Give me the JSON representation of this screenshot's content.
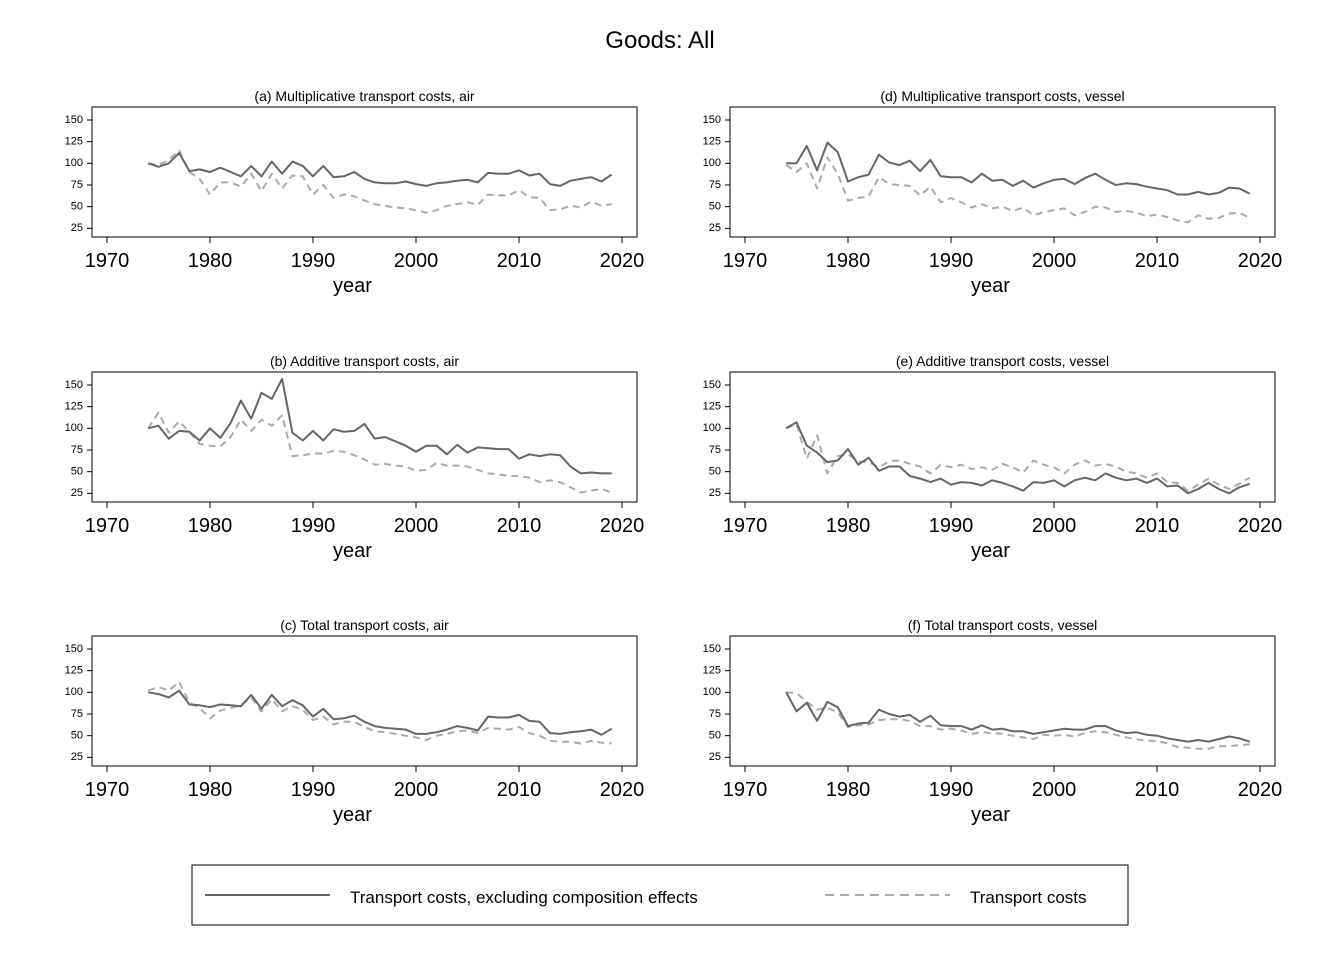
{
  "title": "Goods: All",
  "legend": {
    "items": [
      {
        "label": "Transport costs, excluding composition effects",
        "color": "#666666",
        "dash": "solid"
      },
      {
        "label": "Transport costs",
        "color": "#aaaaaa",
        "dash": "dashed"
      }
    ]
  },
  "chart_data": [
    {
      "id": "a",
      "type": "line",
      "title": "(a) Multiplicative transport costs, air",
      "xlabel": "year",
      "ylabel": "",
      "xlim": [
        1970,
        2020
      ],
      "ylim": [
        15,
        165
      ],
      "xticks": [
        1970,
        1980,
        1990,
        2000,
        2010,
        2020
      ],
      "yticks": [
        25,
        50,
        75,
        100,
        125,
        150
      ],
      "x": [
        1974,
        1975,
        1976,
        1977,
        1978,
        1979,
        1980,
        1981,
        1982,
        1983,
        1984,
        1985,
        1986,
        1987,
        1988,
        1989,
        1990,
        1991,
        1992,
        1993,
        1994,
        1995,
        1996,
        1997,
        1998,
        1999,
        2000,
        2001,
        2002,
        2003,
        2004,
        2005,
        2006,
        2007,
        2008,
        2009,
        2010,
        2011,
        2012,
        2013,
        2014,
        2015,
        2016,
        2017,
        2018,
        2019
      ],
      "series": [
        {
          "values": [
            100,
            96,
            100,
            112,
            91,
            93,
            90,
            95,
            90,
            85,
            97,
            85,
            102,
            88,
            102,
            97,
            85,
            97,
            84,
            85,
            90,
            82,
            78,
            77,
            77,
            79,
            76,
            74,
            77,
            78,
            80,
            81,
            78,
            89,
            88,
            88,
            92,
            86,
            88,
            76,
            74,
            80,
            82,
            84,
            79,
            87
          ]
        },
        {
          "values": [
            100,
            98,
            104,
            115,
            90,
            82,
            64,
            78,
            78,
            73,
            88,
            68,
            88,
            71,
            86,
            85,
            64,
            75,
            60,
            64,
            62,
            57,
            53,
            51,
            49,
            48,
            46,
            43,
            46,
            51,
            53,
            55,
            52,
            64,
            63,
            63,
            69,
            61,
            60,
            46,
            47,
            51,
            49,
            56,
            51,
            53
          ]
        }
      ]
    },
    {
      "id": "d",
      "type": "line",
      "title": "(d) Multiplicative transport costs, vessel",
      "xlabel": "year",
      "ylabel": "",
      "xlim": [
        1970,
        2020
      ],
      "ylim": [
        15,
        165
      ],
      "xticks": [
        1970,
        1980,
        1990,
        2000,
        2010,
        2020
      ],
      "yticks": [
        25,
        50,
        75,
        100,
        125,
        150
      ],
      "x": [
        1974,
        1975,
        1976,
        1977,
        1978,
        1979,
        1980,
        1981,
        1982,
        1983,
        1984,
        1985,
        1986,
        1987,
        1988,
        1989,
        1990,
        1991,
        1992,
        1993,
        1994,
        1995,
        1996,
        1997,
        1998,
        1999,
        2000,
        2001,
        2002,
        2003,
        2004,
        2005,
        2006,
        2007,
        2008,
        2009,
        2010,
        2011,
        2012,
        2013,
        2014,
        2015,
        2016,
        2017,
        2018,
        2019
      ],
      "series": [
        {
          "values": [
            100,
            100,
            120,
            92,
            124,
            113,
            79,
            84,
            87,
            110,
            101,
            98,
            103,
            91,
            104,
            85,
            84,
            84,
            78,
            88,
            80,
            81,
            74,
            80,
            72,
            77,
            81,
            82,
            76,
            83,
            88,
            81,
            75,
            77,
            76,
            73,
            71,
            69,
            64,
            64,
            67,
            64,
            66,
            72,
            71,
            65
          ]
        },
        {
          "values": [
            98,
            90,
            100,
            71,
            107,
            88,
            57,
            60,
            62,
            84,
            76,
            75,
            74,
            63,
            73,
            55,
            60,
            55,
            49,
            53,
            48,
            50,
            45,
            49,
            40,
            44,
            46,
            48,
            40,
            44,
            50,
            49,
            44,
            45,
            43,
            39,
            41,
            38,
            34,
            32,
            40,
            36,
            37,
            42,
            43,
            37
          ]
        }
      ]
    },
    {
      "id": "b",
      "type": "line",
      "title": "(b) Additive transport costs, air",
      "xlabel": "year",
      "ylabel": "",
      "xlim": [
        1970,
        2020
      ],
      "ylim": [
        15,
        165
      ],
      "xticks": [
        1970,
        1980,
        1990,
        2000,
        2010,
        2020
      ],
      "yticks": [
        25,
        50,
        75,
        100,
        125,
        150
      ],
      "x": [
        1974,
        1975,
        1976,
        1977,
        1978,
        1979,
        1980,
        1981,
        1982,
        1983,
        1984,
        1985,
        1986,
        1987,
        1988,
        1989,
        1990,
        1991,
        1992,
        1993,
        1994,
        1995,
        1996,
        1997,
        1998,
        1999,
        2000,
        2001,
        2002,
        2003,
        2004,
        2005,
        2006,
        2007,
        2008,
        2009,
        2010,
        2011,
        2012,
        2013,
        2014,
        2015,
        2016,
        2017,
        2018,
        2019
      ],
      "series": [
        {
          "values": [
            100,
            103,
            88,
            97,
            96,
            86,
            100,
            89,
            106,
            132,
            111,
            141,
            134,
            157,
            95,
            86,
            97,
            86,
            99,
            96,
            97,
            105,
            88,
            90,
            85,
            80,
            73,
            80,
            80,
            70,
            81,
            72,
            78,
            77,
            76,
            76,
            65,
            70,
            68,
            70,
            69,
            56,
            48,
            49,
            48,
            48
          ]
        },
        {
          "values": [
            100,
            118,
            95,
            108,
            96,
            82,
            80,
            79,
            90,
            110,
            97,
            110,
            103,
            115,
            68,
            69,
            71,
            71,
            74,
            73,
            69,
            64,
            58,
            59,
            57,
            56,
            51,
            52,
            60,
            57,
            57,
            56,
            52,
            48,
            47,
            45,
            45,
            43,
            38,
            40,
            38,
            32,
            26,
            28,
            30,
            26
          ]
        }
      ]
    },
    {
      "id": "e",
      "type": "line",
      "title": "(e) Additive transport costs, vessel",
      "xlabel": "year",
      "ylabel": "",
      "xlim": [
        1970,
        2020
      ],
      "ylim": [
        15,
        165
      ],
      "xticks": [
        1970,
        1980,
        1990,
        2000,
        2010,
        2020
      ],
      "yticks": [
        25,
        50,
        75,
        100,
        125,
        150
      ],
      "x": [
        1974,
        1975,
        1976,
        1977,
        1978,
        1979,
        1980,
        1981,
        1982,
        1983,
        1984,
        1985,
        1986,
        1987,
        1988,
        1989,
        1990,
        1991,
        1992,
        1993,
        1994,
        1995,
        1996,
        1997,
        1998,
        1999,
        2000,
        2001,
        2002,
        2003,
        2004,
        2005,
        2006,
        2007,
        2008,
        2009,
        2010,
        2011,
        2012,
        2013,
        2014,
        2015,
        2016,
        2017,
        2018,
        2019
      ],
      "series": [
        {
          "values": [
            100,
            107,
            80,
            72,
            61,
            63,
            76,
            58,
            66,
            51,
            56,
            56,
            45,
            42,
            38,
            42,
            35,
            38,
            37,
            34,
            40,
            37,
            33,
            28,
            38,
            37,
            40,
            33,
            40,
            43,
            40,
            48,
            43,
            40,
            42,
            37,
            42,
            33,
            34,
            25,
            30,
            37,
            30,
            25,
            32,
            36
          ]
        },
        {
          "values": [
            100,
            105,
            65,
            92,
            48,
            68,
            70,
            62,
            61,
            55,
            62,
            63,
            59,
            56,
            48,
            58,
            55,
            58,
            53,
            55,
            52,
            59,
            55,
            49,
            63,
            58,
            55,
            48,
            58,
            63,
            57,
            59,
            56,
            50,
            48,
            43,
            48,
            38,
            37,
            28,
            35,
            42,
            35,
            30,
            36,
            43
          ]
        }
      ]
    },
    {
      "id": "c",
      "type": "line",
      "title": "(c) Total transport costs, air",
      "xlabel": "year",
      "ylabel": "",
      "xlim": [
        1970,
        2020
      ],
      "ylim": [
        15,
        165
      ],
      "xticks": [
        1970,
        1980,
        1990,
        2000,
        2010,
        2020
      ],
      "yticks": [
        25,
        50,
        75,
        100,
        125,
        150
      ],
      "x": [
        1974,
        1975,
        1976,
        1977,
        1978,
        1979,
        1980,
        1981,
        1982,
        1983,
        1984,
        1985,
        1986,
        1987,
        1988,
        1989,
        1990,
        1991,
        1992,
        1993,
        1994,
        1995,
        1996,
        1997,
        1998,
        1999,
        2000,
        2001,
        2002,
        2003,
        2004,
        2005,
        2006,
        2007,
        2008,
        2009,
        2010,
        2011,
        2012,
        2013,
        2014,
        2015,
        2016,
        2017,
        2018,
        2019
      ],
      "series": [
        {
          "values": [
            100,
            98,
            94,
            102,
            86,
            85,
            83,
            86,
            85,
            84,
            97,
            81,
            97,
            84,
            91,
            85,
            72,
            81,
            69,
            70,
            73,
            66,
            61,
            59,
            58,
            57,
            52,
            52,
            54,
            57,
            61,
            59,
            56,
            72,
            71,
            71,
            74,
            67,
            66,
            53,
            52,
            54,
            55,
            57,
            51,
            58
          ]
        },
        {
          "values": [
            102,
            106,
            102,
            112,
            88,
            82,
            70,
            79,
            82,
            85,
            94,
            78,
            92,
            78,
            84,
            80,
            68,
            72,
            63,
            66,
            66,
            60,
            55,
            54,
            52,
            50,
            48,
            45,
            50,
            52,
            55,
            56,
            53,
            59,
            58,
            57,
            60,
            53,
            50,
            44,
            43,
            43,
            41,
            44,
            42,
            41
          ]
        }
      ]
    },
    {
      "id": "f",
      "type": "line",
      "title": "(f) Total transport costs, vessel",
      "xlabel": "year",
      "ylabel": "",
      "xlim": [
        1970,
        2020
      ],
      "ylim": [
        15,
        165
      ],
      "xticks": [
        1970,
        1980,
        1990,
        2000,
        2010,
        2020
      ],
      "yticks": [
        25,
        50,
        75,
        100,
        125,
        150
      ],
      "x": [
        1974,
        1975,
        1976,
        1977,
        1978,
        1979,
        1980,
        1981,
        1982,
        1983,
        1984,
        1985,
        1986,
        1987,
        1988,
        1989,
        1990,
        1991,
        1992,
        1993,
        1994,
        1995,
        1996,
        1997,
        1998,
        1999,
        2000,
        2001,
        2002,
        2003,
        2004,
        2005,
        2006,
        2007,
        2008,
        2009,
        2010,
        2011,
        2012,
        2013,
        2014,
        2015,
        2016,
        2017,
        2018,
        2019
      ],
      "series": [
        {
          "values": [
            100,
            78,
            88,
            67,
            89,
            83,
            61,
            64,
            65,
            80,
            75,
            72,
            74,
            66,
            73,
            62,
            61,
            61,
            57,
            62,
            57,
            58,
            55,
            55,
            52,
            54,
            56,
            58,
            57,
            57,
            61,
            61,
            56,
            53,
            54,
            51,
            50,
            47,
            45,
            43,
            45,
            43,
            46,
            49,
            47,
            43
          ]
        },
        {
          "values": [
            100,
            99,
            89,
            80,
            82,
            77,
            60,
            62,
            63,
            68,
            69,
            69,
            67,
            61,
            61,
            57,
            58,
            56,
            52,
            54,
            53,
            52,
            50,
            48,
            46,
            51,
            50,
            51,
            49,
            53,
            55,
            54,
            51,
            48,
            46,
            44,
            44,
            41,
            37,
            36,
            35,
            35,
            38,
            38,
            39,
            40
          ]
        }
      ]
    }
  ]
}
